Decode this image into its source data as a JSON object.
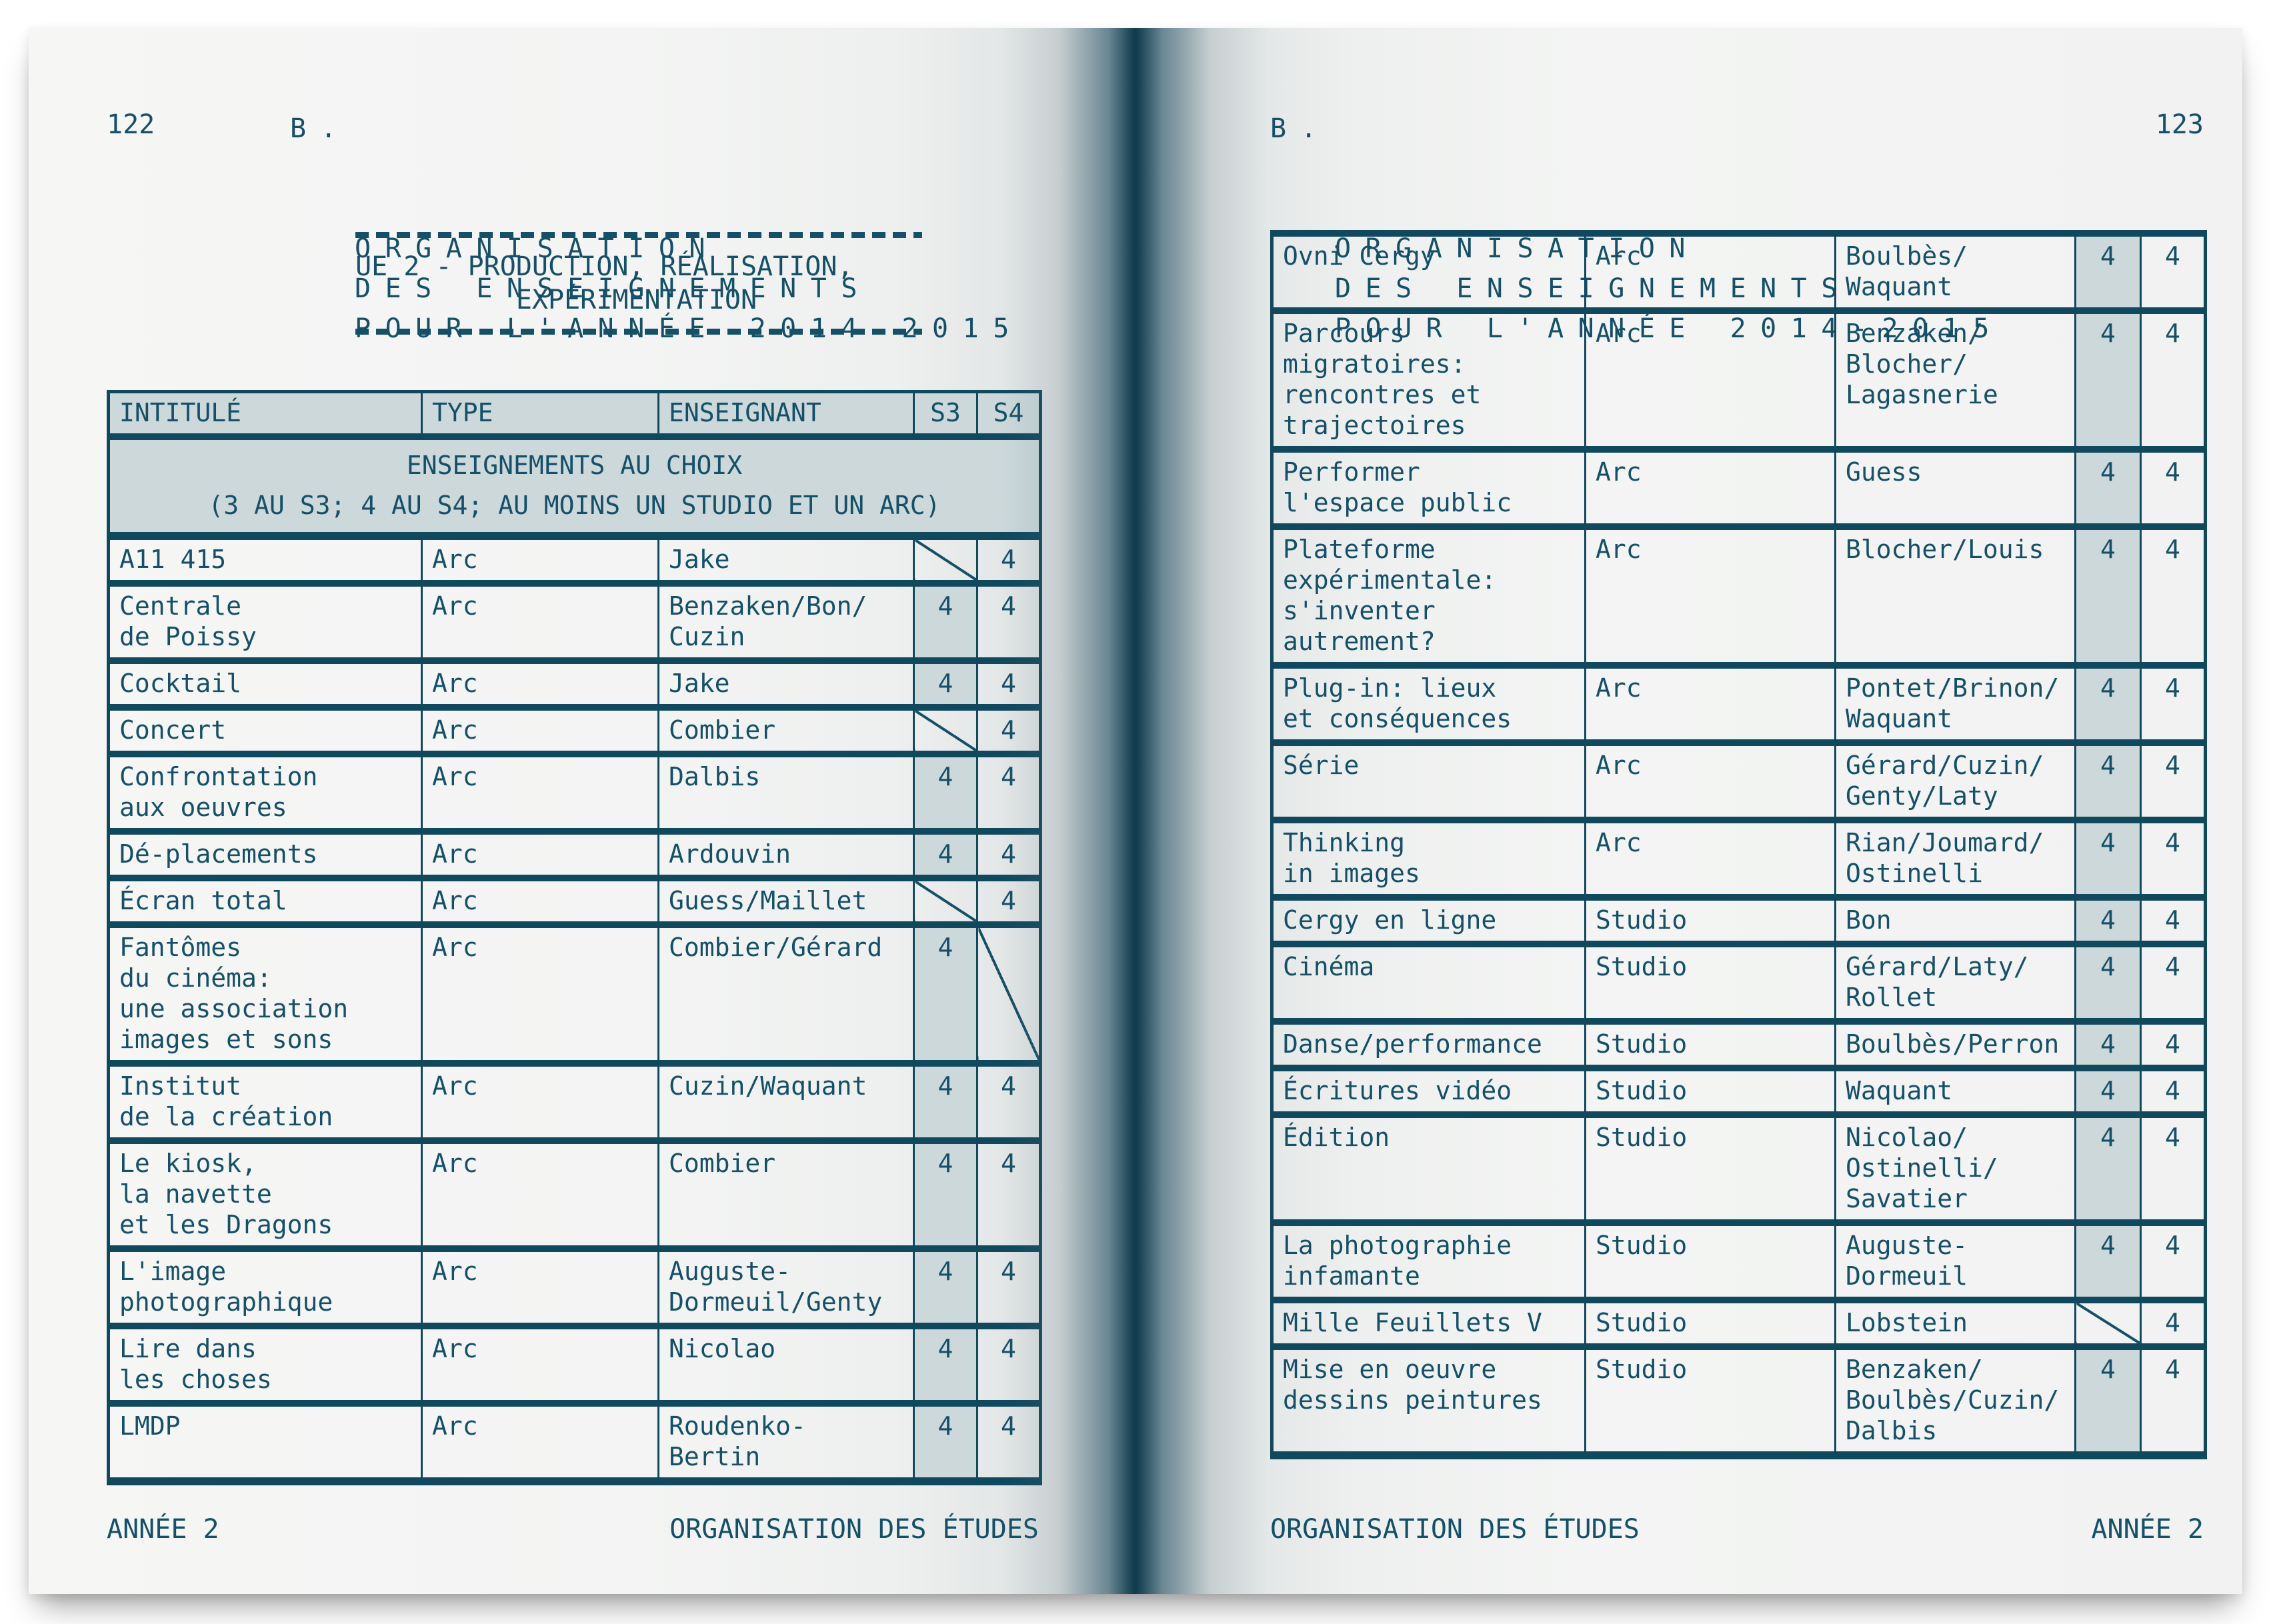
{
  "colors": {
    "ink": "#155068",
    "border": "#10485e",
    "tint": "#ccd8da",
    "paper": "#f2f3f2",
    "spine": "#0f3b4d"
  },
  "page_left": {
    "page_number": "122",
    "header": {
      "prefix": "B.",
      "lines": "ORGANISATION\nDES ENSEIGNEMENTS\nPOUR L'ANNÉE 2014-2015"
    },
    "section": {
      "title": "UE 2 - PRODUCTION, RÉALISATION,\n          EXPÉRIMENTATION"
    },
    "table": {
      "columns": [
        "INTITULÉ",
        "TYPE",
        "ENSEIGNANT",
        "S3",
        "S4"
      ],
      "group_header": "ENSEIGNEMENTS AU CHOIX\n(3 AU S3; 4 AU S4; AU MOINS UN STUDIO ET UN ARC)",
      "rows": [
        {
          "intitule": "A11 415",
          "type": "Arc",
          "enseignant": "Jake",
          "s3": {
            "diagonal": true
          },
          "s4": {
            "value": "4"
          }
        },
        {
          "intitule": "Centrale\nde Poissy",
          "type": "Arc",
          "enseignant": "Benzaken/Bon/\nCuzin",
          "s3": {
            "value": "4"
          },
          "s4": {
            "value": "4"
          }
        },
        {
          "intitule": "Cocktail",
          "type": "Arc",
          "enseignant": "Jake",
          "s3": {
            "value": "4"
          },
          "s4": {
            "value": "4"
          }
        },
        {
          "intitule": "Concert",
          "type": "Arc",
          "enseignant": "Combier",
          "s3": {
            "diagonal": true
          },
          "s4": {
            "value": "4"
          }
        },
        {
          "intitule": "Confrontation\naux oeuvres",
          "type": "Arc",
          "enseignant": "Dalbis",
          "s3": {
            "value": "4"
          },
          "s4": {
            "value": "4"
          }
        },
        {
          "intitule": "Dé-placements",
          "type": "Arc",
          "enseignant": "Ardouvin",
          "s3": {
            "value": "4"
          },
          "s4": {
            "value": "4"
          }
        },
        {
          "intitule": "Écran total",
          "type": "Arc",
          "enseignant": "Guess/Maillet",
          "s3": {
            "diagonal": true
          },
          "s4": {
            "value": "4"
          }
        },
        {
          "intitule": "Fantômes\ndu cinéma:\nune association\nimages et sons",
          "type": "Arc",
          "enseignant": "Combier/Gérard",
          "s3": {
            "value": "4"
          },
          "s4": {
            "diagonal": true
          }
        },
        {
          "intitule": "Institut\nde la création",
          "type": "Arc",
          "enseignant": "Cuzin/Waquant",
          "s3": {
            "value": "4"
          },
          "s4": {
            "value": "4"
          }
        },
        {
          "intitule": "Le kiosk,\nla navette\net les Dragons",
          "type": "Arc",
          "enseignant": "Combier",
          "s3": {
            "value": "4"
          },
          "s4": {
            "value": "4"
          }
        },
        {
          "intitule": "L'image\nphotographique",
          "type": "Arc",
          "enseignant": "Auguste-\nDormeuil/Genty",
          "s3": {
            "value": "4"
          },
          "s4": {
            "value": "4"
          }
        },
        {
          "intitule": "Lire dans\nles choses",
          "type": "Arc",
          "enseignant": "Nicolao",
          "s3": {
            "value": "4"
          },
          "s4": {
            "value": "4"
          }
        },
        {
          "intitule": "LMDP",
          "type": "Arc",
          "enseignant": "Roudenko-\nBertin",
          "s3": {
            "value": "4"
          },
          "s4": {
            "value": "4"
          }
        }
      ]
    },
    "footer": {
      "left": "ANNÉE 2",
      "right": "ORGANISATION DES ÉTUDES"
    }
  },
  "page_right": {
    "page_number": "123",
    "header": {
      "prefix": "B.",
      "lines": "ORGANISATION\nDES ENSEIGNEMENTS\nPOUR L'ANNÉE 2014-2015"
    },
    "table": {
      "rows": [
        {
          "intitule": "Ovni Cergy",
          "type": "Arc",
          "enseignant": "Boulbès/\nWaquant",
          "s3": {
            "value": "4"
          },
          "s4": {
            "value": "4"
          }
        },
        {
          "intitule": "Parcours\nmigratoires:\nrencontres et\ntrajectoires",
          "type": "Arc",
          "enseignant": "Benzaken/\nBlocher/\nLagasnerie",
          "s3": {
            "value": "4"
          },
          "s4": {
            "value": "4"
          }
        },
        {
          "intitule": "Performer\nl'espace public",
          "type": "Arc",
          "enseignant": "Guess",
          "s3": {
            "value": "4"
          },
          "s4": {
            "value": "4"
          }
        },
        {
          "intitule": "Plateforme\nexpérimentale:\ns'inventer\nautrement?",
          "type": "Arc",
          "enseignant": "Blocher/Louis",
          "s3": {
            "value": "4"
          },
          "s4": {
            "value": "4"
          }
        },
        {
          "intitule": "Plug-in: lieux\net conséquences",
          "type": "Arc",
          "enseignant": "Pontet/Brinon/\nWaquant",
          "s3": {
            "value": "4"
          },
          "s4": {
            "value": "4"
          }
        },
        {
          "intitule": "Série",
          "type": "Arc",
          "enseignant": "Gérard/Cuzin/\nGenty/Laty",
          "s3": {
            "value": "4"
          },
          "s4": {
            "value": "4"
          }
        },
        {
          "intitule": "Thinking\nin images",
          "type": "Arc",
          "enseignant": "Rian/Joumard/\nOstinelli",
          "s3": {
            "value": "4"
          },
          "s4": {
            "value": "4"
          }
        },
        {
          "intitule": "Cergy en ligne",
          "type": "Studio",
          "enseignant": "Bon",
          "s3": {
            "value": "4"
          },
          "s4": {
            "value": "4"
          }
        },
        {
          "intitule": "Cinéma",
          "type": "Studio",
          "enseignant": "Gérard/Laty/\nRollet",
          "s3": {
            "value": "4"
          },
          "s4": {
            "value": "4"
          }
        },
        {
          "intitule": "Danse/performance",
          "type": "Studio",
          "enseignant": "Boulbès/Perron",
          "s3": {
            "value": "4"
          },
          "s4": {
            "value": "4"
          }
        },
        {
          "intitule": "Écritures vidéo",
          "type": "Studio",
          "enseignant": "Waquant",
          "s3": {
            "value": "4"
          },
          "s4": {
            "value": "4"
          }
        },
        {
          "intitule": "Édition",
          "type": "Studio",
          "enseignant": "Nicolao/\nOstinelli/\nSavatier",
          "s3": {
            "value": "4"
          },
          "s4": {
            "value": "4"
          }
        },
        {
          "intitule": "La photographie\ninfamante",
          "type": "Studio",
          "enseignant": "Auguste-\nDormeuil",
          "s3": {
            "value": "4"
          },
          "s4": {
            "value": "4"
          }
        },
        {
          "intitule": "Mille Feuillets V",
          "type": "Studio",
          "enseignant": "Lobstein",
          "s3": {
            "diagonal": true
          },
          "s4": {
            "value": "4"
          }
        },
        {
          "intitule": "Mise en oeuvre\ndessins peintures",
          "type": "Studio",
          "enseignant": "Benzaken/\nBoulbès/Cuzin/\nDalbis",
          "s3": {
            "value": "4"
          },
          "s4": {
            "value": "4"
          }
        }
      ]
    },
    "footer": {
      "left": "ORGANISATION DES ÉTUDES",
      "right": "ANNÉE 2"
    }
  }
}
